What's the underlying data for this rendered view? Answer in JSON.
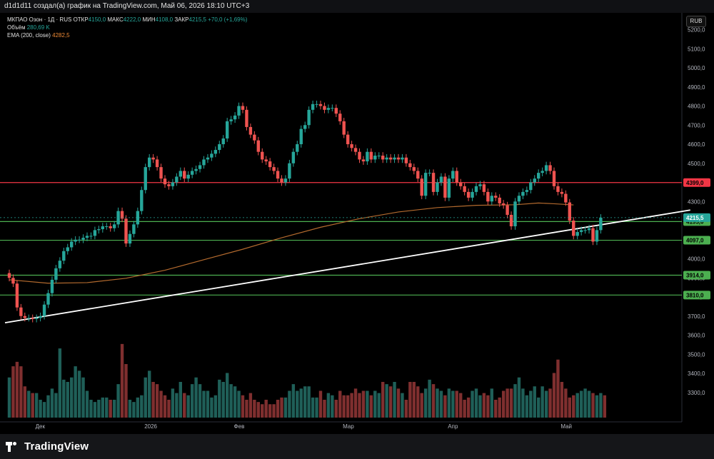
{
  "header": {
    "caption": "d1d1d11 создал(а) график на TradingView.com, Май 06, 2026 18:10 UTC+3"
  },
  "legend": {
    "symbol": "МКПАО Озон · 1Д · RUS",
    "open_label": "ОТКР",
    "open_value": "4150,0",
    "high_label": "МАКС",
    "high_value": "4222,0",
    "low_label": "МИН",
    "low_value": "4108,0",
    "close_label": "ЗАКР",
    "close_value": "4215,5",
    "change": "+70,0 (+1,69%)",
    "volume_label": "Объём",
    "volume_value": "280,69 K",
    "ema_label": "EMA (200, close)",
    "ema_value": "4282,5"
  },
  "currency_button": "RUB",
  "footer": {
    "brand": "TradingView"
  },
  "colors": {
    "up": "#26a69a",
    "down": "#ef5350",
    "volume_up": "#1f5f58",
    "volume_down": "#7f2f2f",
    "ema": "#b36a2e",
    "level_red": "#f23645",
    "level_green": "#4caf50",
    "trendline": "#ffffff",
    "axis_text": "#b2b5be"
  },
  "chart_data": {
    "type": "candlestick",
    "price_axis": {
      "min": 3300,
      "max": 5200,
      "ticks": [
        5200,
        5100,
        5000,
        4900,
        4800,
        4700,
        4600,
        4500,
        4400,
        4300,
        4200,
        4100,
        4000,
        3900,
        3800,
        3700,
        3600,
        3500,
        3400,
        3300
      ],
      "tick_labels": [
        "5200,0",
        "5100,0",
        "5000,0",
        "4900,0",
        "4800,0",
        "4700,0",
        "4600,0",
        "4500,0",
        "4400,0",
        "4300,0",
        "4200,0",
        "4100,0",
        "4000,0",
        "3900,0",
        "3800,0",
        "3700,0",
        "3600,0",
        "3500,0",
        "3400,0",
        "3300,0"
      ]
    },
    "time_labels": [
      {
        "label": "Дек",
        "index": 8
      },
      {
        "label": "2026",
        "index": 36
      },
      {
        "label": "Фев",
        "index": 59
      },
      {
        "label": "Мар",
        "index": 87
      },
      {
        "label": "Апр",
        "index": 114
      },
      {
        "label": "Май",
        "index": 143
      }
    ],
    "horizontal_levels": [
      {
        "value": 4399,
        "label": "4399,0",
        "color": "red"
      },
      {
        "value": 4195,
        "label": "4195,0",
        "color": "green"
      },
      {
        "value": 4097,
        "label": "4097,0",
        "color": "green"
      },
      {
        "value": 3914,
        "label": "3914,0",
        "color": "green"
      },
      {
        "value": 3810,
        "label": "3810,0",
        "color": "green"
      }
    ],
    "last_price": {
      "value": 4215.5,
      "label": "4215,5"
    },
    "trendline": {
      "start": {
        "index": 0,
        "value": 3665
      },
      "end": {
        "index": 175,
        "value": 4255
      }
    },
    "ema_200": [
      [
        0,
        3890
      ],
      [
        10,
        3872
      ],
      [
        20,
        3875
      ],
      [
        30,
        3898
      ],
      [
        40,
        3940
      ],
      [
        50,
        3995
      ],
      [
        60,
        4050
      ],
      [
        70,
        4110
      ],
      [
        80,
        4165
      ],
      [
        90,
        4210
      ],
      [
        100,
        4245
      ],
      [
        110,
        4268
      ],
      [
        120,
        4280
      ],
      [
        130,
        4283
      ],
      [
        136,
        4292
      ],
      [
        140,
        4288
      ],
      [
        145,
        4282
      ]
    ],
    "closes": [
      3900,
      3870,
      3745,
      3700,
      3690,
      3690,
      3685,
      3690,
      3700,
      3760,
      3820,
      3890,
      3950,
      3990,
      4040,
      4060,
      4090,
      4100,
      4100,
      4110,
      4120,
      4120,
      4150,
      4155,
      4170,
      4170,
      4160,
      4180,
      4250,
      4210,
      4080,
      4130,
      4180,
      4250,
      4360,
      4480,
      4530,
      4520,
      4480,
      4420,
      4390,
      4380,
      4400,
      4430,
      4460,
      4420,
      4440,
      4460,
      4470,
      4490,
      4520,
      4530,
      4550,
      4570,
      4600,
      4630,
      4720,
      4730,
      4750,
      4800,
      4780,
      4690,
      4650,
      4620,
      4560,
      4520,
      4510,
      4480,
      4460,
      4420,
      4400,
      4420,
      4500,
      4560,
      4600,
      4680,
      4700,
      4780,
      4810,
      4810,
      4800,
      4780,
      4790,
      4790,
      4760,
      4720,
      4650,
      4600,
      4580,
      4560,
      4520,
      4510,
      4560,
      4520,
      4540,
      4540,
      4520,
      4530,
      4520,
      4530,
      4520,
      4530,
      4500,
      4480,
      4460,
      4420,
      4330,
      4450,
      4450,
      4350,
      4400,
      4430,
      4320,
      4420,
      4460,
      4400,
      4380,
      4350,
      4320,
      4350,
      4380,
      4390,
      4350,
      4300,
      4330,
      4320,
      4290,
      4280,
      4230,
      4170,
      4300,
      4330,
      4350,
      4360,
      4400,
      4420,
      4450,
      4460,
      4490,
      4460,
      4380,
      4350,
      4340,
      4295,
      4200,
      4120,
      4140,
      4150,
      4150,
      4160,
      4090,
      4150,
      4215.5
    ],
    "volumes_k": [
      180,
      230,
      250,
      230,
      140,
      120,
      110,
      110,
      80,
      70,
      100,
      130,
      110,
      310,
      170,
      160,
      180,
      230,
      210,
      180,
      120,
      80,
      70,
      80,
      90,
      90,
      80,
      80,
      150,
      330,
      240,
      80,
      70,
      90,
      100,
      180,
      210,
      160,
      150,
      120,
      100,
      80,
      130,
      110,
      160,
      110,
      100,
      150,
      180,
      150,
      120,
      120,
      90,
      100,
      170,
      160,
      200,
      150,
      140,
      120,
      100,
      80,
      110,
      80,
      70,
      60,
      80,
      60,
      60,
      80,
      90,
      90,
      120,
      150,
      120,
      130,
      140,
      140,
      90,
      90,
      120,
      80,
      110,
      100,
      80,
      120,
      100,
      100,
      110,
      130,
      110,
      120,
      120,
      100,
      120,
      110,
      160,
      150,
      140,
      160,
      130,
      110,
      80,
      160,
      160,
      140,
      110,
      130,
      170,
      150,
      130,
      120,
      100,
      130,
      120,
      120,
      110,
      80,
      90,
      120,
      130,
      100,
      110,
      100,
      130,
      80,
      90,
      120,
      130,
      130,
      150,
      180,
      130,
      100,
      120,
      140,
      90,
      140,
      120,
      130,
      200,
      260,
      160,
      130,
      90,
      100,
      110,
      120,
      130,
      120,
      110,
      100,
      110,
      100
    ],
    "visible_volume_max_k": 400
  }
}
